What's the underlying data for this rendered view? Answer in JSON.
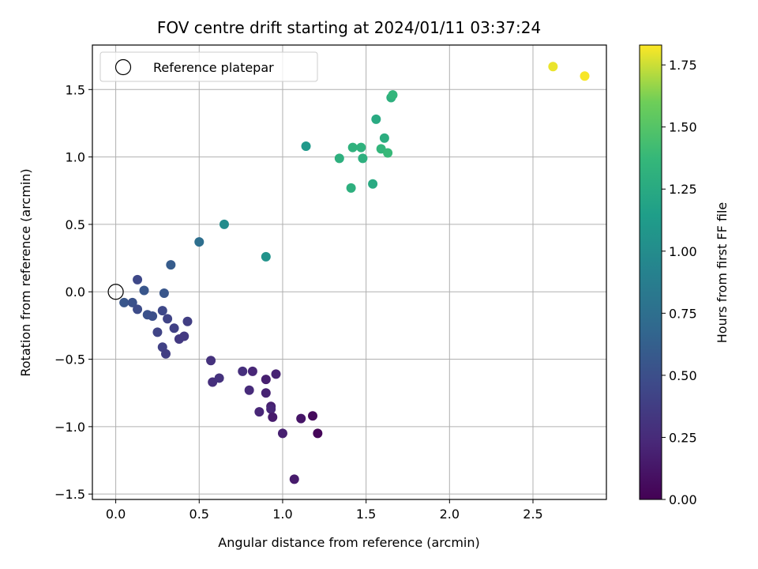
{
  "chart_data": {
    "type": "scatter",
    "title": "FOV centre drift starting at 2024/01/11 03:37:24",
    "xlabel": "Angular distance from reference (arcmin)",
    "ylabel": "Rotation from reference (arcmin)",
    "xlim": [
      -0.14,
      2.94
    ],
    "ylim": [
      -1.54,
      1.83
    ],
    "x_ticks": [
      "0.0",
      "0.5",
      "1.0",
      "1.5",
      "2.0",
      "2.5"
    ],
    "x_tick_values": [
      0.0,
      0.5,
      1.0,
      1.5,
      2.0,
      2.5
    ],
    "y_ticks": [
      "−1.5",
      "−1.0",
      "−0.5",
      "0.0",
      "0.5",
      "1.0",
      "1.5"
    ],
    "y_tick_values": [
      -1.5,
      -1.0,
      -0.5,
      0.0,
      0.5,
      1.0,
      1.5
    ],
    "grid": true,
    "legend": {
      "location": "top-left",
      "entries": [
        {
          "label": "Reference platepar",
          "marker": "open-circle",
          "color": "#000000"
        }
      ]
    },
    "colorbar": {
      "label": "Hours from first FF file",
      "range": [
        0.0,
        1.83
      ],
      "colormap": "viridis",
      "ticks": [
        "0.00",
        "0.25",
        "0.50",
        "0.75",
        "1.00",
        "1.25",
        "1.50",
        "1.75"
      ],
      "tick_values": [
        0.0,
        0.25,
        0.5,
        0.75,
        1.0,
        1.25,
        1.5,
        1.75
      ]
    },
    "reference_point": {
      "x": 0.0,
      "y": 0.0
    },
    "points": [
      {
        "x": 0.05,
        "y": -0.08,
        "c": 0.55
      },
      {
        "x": 0.1,
        "y": -0.08,
        "c": 0.52
      },
      {
        "x": 0.13,
        "y": 0.09,
        "c": 0.45
      },
      {
        "x": 0.13,
        "y": -0.13,
        "c": 0.48
      },
      {
        "x": 0.17,
        "y": 0.01,
        "c": 0.55
      },
      {
        "x": 0.19,
        "y": -0.17,
        "c": 0.52
      },
      {
        "x": 0.22,
        "y": -0.18,
        "c": 0.5
      },
      {
        "x": 0.25,
        "y": -0.3,
        "c": 0.42
      },
      {
        "x": 0.28,
        "y": -0.14,
        "c": 0.45
      },
      {
        "x": 0.28,
        "y": -0.41,
        "c": 0.4
      },
      {
        "x": 0.29,
        "y": -0.01,
        "c": 0.55
      },
      {
        "x": 0.3,
        "y": -0.46,
        "c": 0.38
      },
      {
        "x": 0.31,
        "y": -0.2,
        "c": 0.42
      },
      {
        "x": 0.33,
        "y": 0.2,
        "c": 0.6
      },
      {
        "x": 0.35,
        "y": -0.27,
        "c": 0.4
      },
      {
        "x": 0.38,
        "y": -0.35,
        "c": 0.35
      },
      {
        "x": 0.41,
        "y": -0.33,
        "c": 0.35
      },
      {
        "x": 0.43,
        "y": -0.22,
        "c": 0.38
      },
      {
        "x": 0.5,
        "y": 0.37,
        "c": 0.75
      },
      {
        "x": 0.57,
        "y": -0.51,
        "c": 0.3
      },
      {
        "x": 0.58,
        "y": -0.67,
        "c": 0.28
      },
      {
        "x": 0.62,
        "y": -0.64,
        "c": 0.3
      },
      {
        "x": 0.65,
        "y": 0.5,
        "c": 1.0
      },
      {
        "x": 0.76,
        "y": -0.59,
        "c": 0.28
      },
      {
        "x": 0.8,
        "y": -0.73,
        "c": 0.25
      },
      {
        "x": 0.82,
        "y": -0.59,
        "c": 0.22
      },
      {
        "x": 0.86,
        "y": -0.89,
        "c": 0.22
      },
      {
        "x": 0.9,
        "y": 0.26,
        "c": 1.05
      },
      {
        "x": 0.9,
        "y": -0.65,
        "c": 0.18
      },
      {
        "x": 0.9,
        "y": -0.75,
        "c": 0.2
      },
      {
        "x": 0.93,
        "y": -0.85,
        "c": 0.18
      },
      {
        "x": 0.93,
        "y": -0.87,
        "c": 0.22
      },
      {
        "x": 0.94,
        "y": -0.93,
        "c": 0.15
      },
      {
        "x": 0.96,
        "y": -0.61,
        "c": 0.2
      },
      {
        "x": 1.0,
        "y": -1.05,
        "c": 0.18
      },
      {
        "x": 1.07,
        "y": -1.39,
        "c": 0.15
      },
      {
        "x": 1.11,
        "y": -0.94,
        "c": 0.12
      },
      {
        "x": 1.14,
        "y": 1.08,
        "c": 1.1
      },
      {
        "x": 1.18,
        "y": -0.92,
        "c": 0.05
      },
      {
        "x": 1.21,
        "y": -1.05,
        "c": 0.03
      },
      {
        "x": 1.34,
        "y": 0.99,
        "c": 1.3
      },
      {
        "x": 1.41,
        "y": 0.77,
        "c": 1.3
      },
      {
        "x": 1.42,
        "y": 1.07,
        "c": 1.32
      },
      {
        "x": 1.47,
        "y": 1.07,
        "c": 1.32
      },
      {
        "x": 1.48,
        "y": 0.99,
        "c": 1.3
      },
      {
        "x": 1.54,
        "y": 0.8,
        "c": 1.25
      },
      {
        "x": 1.56,
        "y": 1.28,
        "c": 1.25
      },
      {
        "x": 1.59,
        "y": 1.06,
        "c": 1.35
      },
      {
        "x": 1.61,
        "y": 1.14,
        "c": 1.28
      },
      {
        "x": 1.63,
        "y": 1.03,
        "c": 1.38
      },
      {
        "x": 1.65,
        "y": 1.44,
        "c": 1.3
      },
      {
        "x": 1.66,
        "y": 1.46,
        "c": 1.35
      },
      {
        "x": 2.62,
        "y": 1.67,
        "c": 1.8
      },
      {
        "x": 2.81,
        "y": 1.6,
        "c": 1.82
      }
    ]
  }
}
